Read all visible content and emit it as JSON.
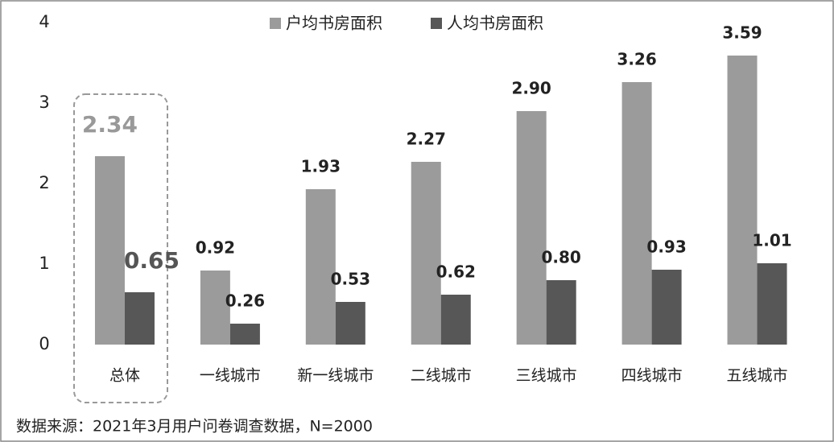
{
  "chart_data": {
    "type": "bar",
    "categories": [
      "总体",
      "一线城市",
      "新一线城市",
      "二线城市",
      "三线城市",
      "四线城市",
      "五线城市"
    ],
    "series": [
      {
        "name": "户均书房面积",
        "color": "#9b9b9b",
        "values": [
          2.34,
          0.92,
          1.93,
          2.27,
          2.9,
          3.26,
          3.59
        ],
        "value_labels": [
          "2.34",
          "0.92",
          "1.93",
          "2.27",
          "2.90",
          "3.26",
          "3.59"
        ]
      },
      {
        "name": "人均书房面积",
        "color": "#575757",
        "values": [
          0.65,
          0.26,
          0.53,
          0.62,
          0.8,
          0.93,
          1.01
        ],
        "value_labels": [
          "0.65",
          "0.26",
          "0.53",
          "0.62",
          "0.80",
          "0.93",
          "1.01"
        ]
      }
    ],
    "ylim": [
      0,
      4
    ],
    "yticks": [
      0,
      1,
      2,
      3,
      4
    ],
    "grid": false,
    "legend": "top",
    "source": "数据来源：2021年3月用户问卷调查数据，N=2000"
  }
}
